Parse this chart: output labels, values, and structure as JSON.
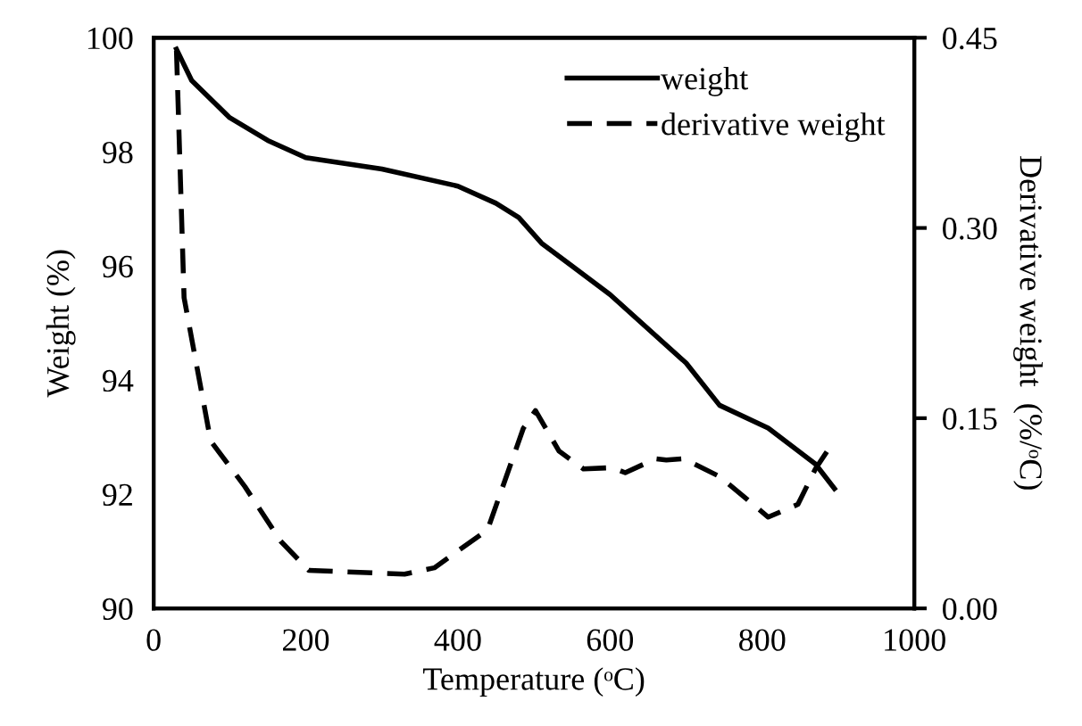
{
  "chart_data": {
    "type": "line",
    "xlabel": "Temperature (ᵒC)",
    "ylabel": "Weight (%)",
    "y2label": "Derivative weight  (%/ᵒC)",
    "xlim": [
      0,
      1000
    ],
    "xticks": [
      0,
      200,
      400,
      600,
      800,
      1000
    ],
    "ylim": [
      90,
      100
    ],
    "yticks": [
      90,
      92,
      94,
      96,
      98,
      100
    ],
    "y2lim": [
      0,
      0.45
    ],
    "y2ticks": [
      {
        "value": 0,
        "label": "0.00"
      },
      {
        "value": 0.15,
        "label": "0.15"
      },
      {
        "value": 0.3,
        "label": "0.30"
      },
      {
        "value": 0.45,
        "label": "0.45"
      }
    ],
    "legend": "top right",
    "grid": false,
    "series": [
      {
        "name": "weight",
        "color": "#000000",
        "line_style": "solid",
        "x": [
          30,
          50,
          100,
          150,
          200,
          300,
          400,
          450,
          480,
          510,
          550,
          600,
          700,
          744,
          808,
          870,
          895
        ],
        "values": [
          99.8,
          99.25,
          98.6,
          98.2,
          97.9,
          97.7,
          97.4,
          97.1,
          96.85,
          96.4,
          96.0,
          95.5,
          94.3,
          93.56,
          93.16,
          92.53,
          92.1
        ]
      },
      {
        "name": "derivative weight",
        "color": "#000000",
        "line_style": "dashed",
        "axis": "y2",
        "x": [
          30,
          40,
          75,
          120,
          167,
          204,
          330,
          369,
          439,
          486,
          502,
          533,
          565,
          603,
          620,
          660,
          674,
          697,
          744,
          808,
          847,
          870,
          890
        ],
        "values": [
          0.44,
          0.245,
          0.132,
          0.096,
          0.053,
          0.03,
          0.027,
          0.032,
          0.062,
          0.142,
          0.156,
          0.124,
          0.11,
          0.111,
          0.107,
          0.118,
          0.117,
          0.118,
          0.104,
          0.072,
          0.082,
          0.11,
          0.128
        ]
      }
    ]
  }
}
